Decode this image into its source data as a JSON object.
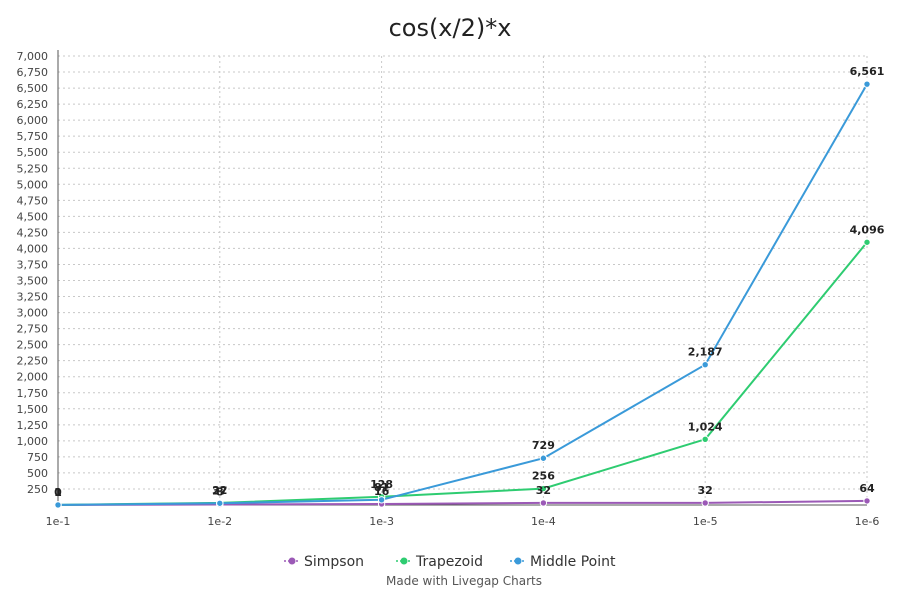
{
  "chart_data": {
    "type": "line",
    "title": "cos(x/2)*x",
    "categories": [
      "1e-1",
      "1e-2",
      "1e-3",
      "1e-4",
      "1e-5",
      "1e-6"
    ],
    "ylim": [
      0,
      7000
    ],
    "yticks": [
      "250",
      "500",
      "750",
      "1,000",
      "1,250",
      "1,500",
      "1,750",
      "2,000",
      "2,250",
      "2,500",
      "2,750",
      "3,000",
      "3,250",
      "3,500",
      "3,750",
      "4,000",
      "4,250",
      "4,500",
      "4,750",
      "5,000",
      "5,250",
      "5,500",
      "5,750",
      "6,000",
      "6,250",
      "6,500",
      "6,750",
      "7,000"
    ],
    "grid": true,
    "legend_position": "bottom",
    "series": [
      {
        "name": "Simpson",
        "color": "#9b59b6",
        "values": [
          0,
          8,
          16,
          32,
          32,
          64
        ],
        "labels": [
          "0",
          "8",
          "16",
          "32",
          "32",
          "64"
        ]
      },
      {
        "name": "Trapezoid",
        "color": "#2ecc71",
        "values": [
          1,
          32,
          128,
          256,
          1024,
          4096
        ],
        "labels": [
          "1",
          "32",
          "128",
          "256",
          "1,024",
          "4,096"
        ]
      },
      {
        "name": "Middle Point",
        "color": "#3a9ad9",
        "values": [
          1,
          27,
          81,
          729,
          2187,
          6561
        ],
        "labels": [
          "1",
          "27",
          "81",
          "729",
          "2,187",
          "6,561"
        ]
      }
    ]
  },
  "footer": {
    "credit": "Made with Livegap Charts"
  }
}
